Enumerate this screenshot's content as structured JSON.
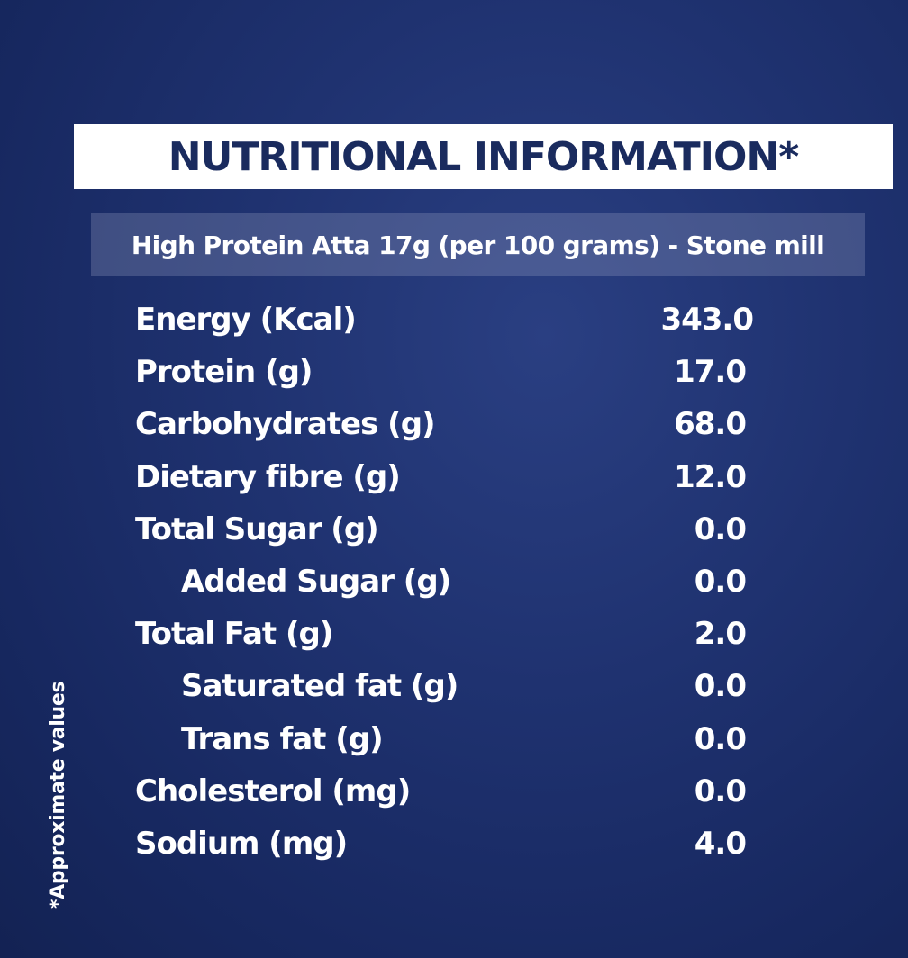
{
  "title": "NUTRITIONAL INFORMATION*",
  "subtitle": "High Protein Atta 17g (per 100 grams) - Stone mill",
  "footnote": "*Approximate values",
  "colors": {
    "background": "#1f3270",
    "title_box": "#ffffff",
    "title_text": "#1a2b5e",
    "text": "#ffffff"
  },
  "nutrients": [
    {
      "label": "Energy (Kcal)",
      "value": "343.0",
      "indented": false
    },
    {
      "label": "Protein (g)",
      "value": "17.0",
      "indented": false
    },
    {
      "label": "Carbohydrates (g)",
      "value": "68.0",
      "indented": false
    },
    {
      "label": "Dietary fibre (g)",
      "value": "12.0",
      "indented": false
    },
    {
      "label": "Total Sugar (g)",
      "value": "0.0",
      "indented": false
    },
    {
      "label": "Added Sugar (g)",
      "value": "0.0",
      "indented": true
    },
    {
      "label": "Total Fat (g)",
      "value": "2.0",
      "indented": false
    },
    {
      "label": "Saturated fat (g)",
      "value": "0.0",
      "indented": true
    },
    {
      "label": "Trans fat (g)",
      "value": "0.0",
      "indented": true
    },
    {
      "label": "Cholesterol (mg)",
      "value": "0.0",
      "indented": false
    },
    {
      "label": "Sodium (mg)",
      "value": "4.0",
      "indented": false
    }
  ]
}
